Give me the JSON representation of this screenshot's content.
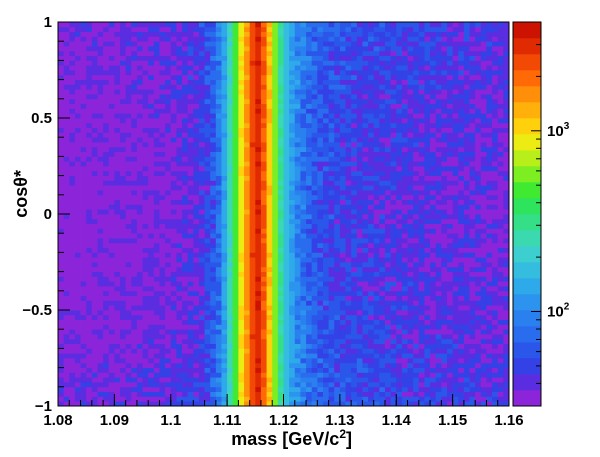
{
  "chart_data": {
    "type": "heatmap",
    "title": "",
    "xlabel": "mass [GeV/c²]",
    "ylabel": "cosθ*",
    "xlim": [
      1.08,
      1.16
    ],
    "ylim": [
      -1,
      1
    ],
    "x_ticks": [
      "1.08",
      "1.09",
      "1.1",
      "1.11",
      "1.12",
      "1.13",
      "1.14",
      "1.15",
      "1.16"
    ],
    "y_ticks": [
      "−1",
      "−0.5",
      "0",
      "0.5",
      "1"
    ],
    "bins": {
      "x": 80,
      "y": 80
    },
    "mass_profile": {
      "mass": [
        1.08,
        1.09,
        1.1,
        1.105,
        1.108,
        1.11,
        1.111,
        1.112,
        1.113,
        1.114,
        1.115,
        1.116,
        1.117,
        1.118,
        1.119,
        1.12,
        1.122,
        1.125,
        1.13,
        1.14,
        1.15,
        1.16
      ],
      "counts": [
        32,
        35,
        38,
        45,
        70,
        160,
        350,
        650,
        1300,
        1800,
        3400,
        3000,
        1600,
        800,
        420,
        200,
        110,
        70,
        55,
        48,
        44,
        40
      ]
    },
    "colorbar": {
      "scale": "log",
      "range": [
        30,
        4000
      ],
      "tick_labels": [
        {
          "base": "10",
          "exp": "2",
          "value": 100
        },
        {
          "base": "10",
          "exp": "3",
          "value": 1000
        }
      ],
      "colors": [
        "#8c25d9",
        "#5a2ee0",
        "#3441e6",
        "#2a57ea",
        "#2a6cee",
        "#2a80ef",
        "#2c94ee",
        "#2eaaea",
        "#35bde0",
        "#3dcfcf",
        "#3ad9b0",
        "#34df88",
        "#2ee45c",
        "#40ea30",
        "#7cee22",
        "#b8ef1a",
        "#ecec12",
        "#ffd10c",
        "#ffb00a",
        "#ff8e08",
        "#ff6a06",
        "#f24a04",
        "#e02b02",
        "#cc1200"
      ]
    }
  }
}
